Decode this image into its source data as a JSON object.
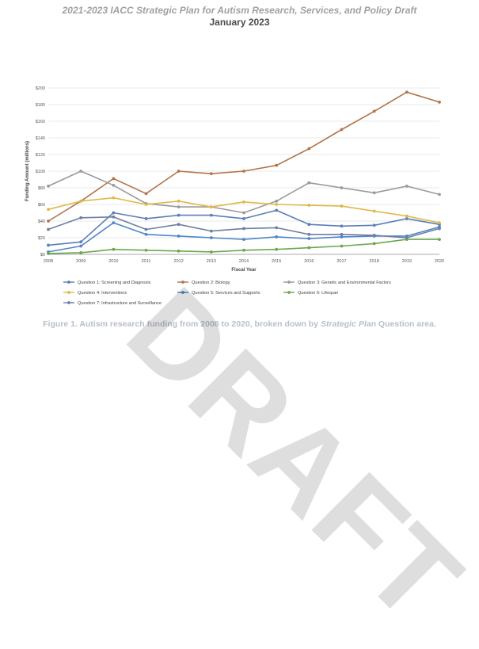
{
  "document": {
    "title": "2021-2023 IACC Strategic Plan for Autism Research, Services, and Policy Draft",
    "date": "January 2023",
    "caption_prefix": "Figure 1. Autism research funding from 2008 to 2020, broken down by ",
    "caption_em": "Strategic Plan",
    "caption_suffix": " Question area.",
    "watermark": "DRAFT"
  },
  "chart_data": {
    "type": "line",
    "title": "",
    "xlabel": "Fiscal Year",
    "ylabel": "Funding Amount (millions)",
    "x": [
      "2008",
      "2009",
      "2010",
      "2011",
      "2012",
      "2013",
      "2014",
      "2015",
      "2016",
      "2017",
      "2018",
      "2019",
      "2020"
    ],
    "ylim": [
      0,
      200
    ],
    "yticks": [
      "$0",
      "$20",
      "$40",
      "$60",
      "$80",
      "$100",
      "$120",
      "$140",
      "$160",
      "$180",
      "$200"
    ],
    "series": [
      {
        "name": "Question 1: Screening and Diagnosis",
        "color": "#5b7db8",
        "values": [
          11,
          15,
          50,
          43,
          47,
          47,
          43,
          53,
          36,
          34,
          35,
          43,
          36
        ]
      },
      {
        "name": "Question 2: Biology",
        "color": "#b4744a",
        "values": [
          40,
          64,
          91,
          73,
          100,
          97,
          100,
          107,
          127,
          150,
          172,
          195,
          183
        ]
      },
      {
        "name": "Question 3: Genetic and Environmental Factors",
        "color": "#9a9a9a",
        "values": [
          82,
          100,
          83,
          61,
          57,
          57,
          50,
          64,
          86,
          80,
          74,
          82,
          72
        ]
      },
      {
        "name": "Question 4: Interventions",
        "color": "#e0b84a",
        "values": [
          54,
          64,
          68,
          60,
          64,
          57,
          63,
          60,
          59,
          58,
          52,
          46,
          38
        ]
      },
      {
        "name": "Question 5: Services and Supports",
        "color": "#4f86c6",
        "values": [
          3,
          10,
          38,
          24,
          22,
          20,
          18,
          21,
          19,
          21,
          22,
          22,
          33
        ]
      },
      {
        "name": "Question 6: Lifespan",
        "color": "#6aa84f",
        "values": [
          1,
          2,
          6,
          5,
          4,
          3,
          5,
          6,
          8,
          10,
          13,
          18,
          18
        ]
      },
      {
        "name": "Question 7: Infrastructure and Surveillance",
        "color": "#6e7fa3",
        "values": [
          30,
          44,
          45,
          30,
          36,
          28,
          31,
          32,
          24,
          24,
          23,
          20,
          31
        ]
      }
    ]
  }
}
